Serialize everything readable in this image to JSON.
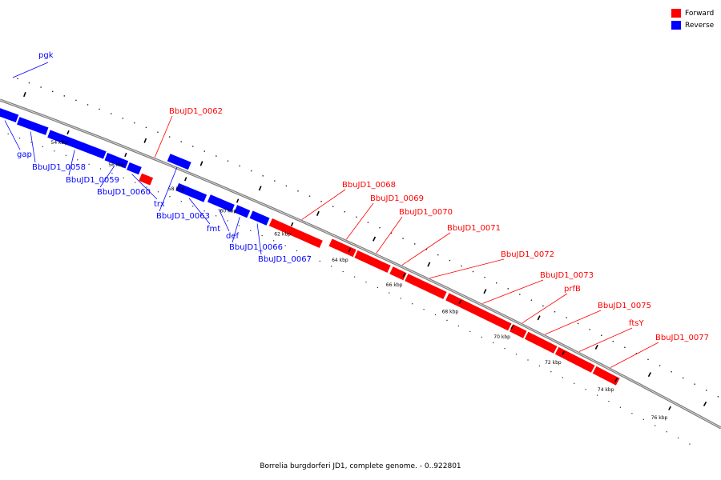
{
  "legend": {
    "forward": {
      "label": "Forward",
      "color": "#ff0000"
    },
    "reverse": {
      "label": "Reverse",
      "color": "#0000ff"
    }
  },
  "caption": "Borrelia burgdorferi JD1, complete genome. - 0..922801",
  "axis": {
    "tick_labels": [
      "54 kbp",
      "56 kbp",
      "58 kbp",
      "60 kbp",
      "62 kbp",
      "64 kbp",
      "66 kbp",
      "68 kbp",
      "70 kbp",
      "72 kbp",
      "74 kbp",
      "76 kbp"
    ]
  },
  "genes": [
    {
      "name": "pgk",
      "strand": "reverse"
    },
    {
      "name": "gap",
      "strand": "reverse"
    },
    {
      "name": "BbuJD1_0058",
      "strand": "reverse"
    },
    {
      "name": "BbuJD1_0059",
      "strand": "reverse"
    },
    {
      "name": "BbuJD1_0060",
      "strand": "reverse"
    },
    {
      "name": "trx",
      "strand": "reverse"
    },
    {
      "name": "BbuJD1_0062",
      "strand": "forward"
    },
    {
      "name": "BbuJD1_0063",
      "strand": "reverse"
    },
    {
      "name": "fmt",
      "strand": "reverse"
    },
    {
      "name": "def",
      "strand": "reverse"
    },
    {
      "name": "BbuJD1_0066",
      "strand": "reverse"
    },
    {
      "name": "BbuJD1_0067",
      "strand": "reverse"
    },
    {
      "name": "BbuJD1_0068",
      "strand": "forward"
    },
    {
      "name": "BbuJD1_0069",
      "strand": "forward"
    },
    {
      "name": "BbuJD1_0070",
      "strand": "forward"
    },
    {
      "name": "BbuJD1_0071",
      "strand": "forward"
    },
    {
      "name": "BbuJD1_0072",
      "strand": "forward"
    },
    {
      "name": "BbuJD1_0073",
      "strand": "forward"
    },
    {
      "name": "prfB",
      "strand": "forward"
    },
    {
      "name": "BbuJD1_0075",
      "strand": "forward"
    },
    {
      "name": "ftsY",
      "strand": "forward"
    },
    {
      "name": "BbuJD1_0077",
      "strand": "forward"
    }
  ]
}
